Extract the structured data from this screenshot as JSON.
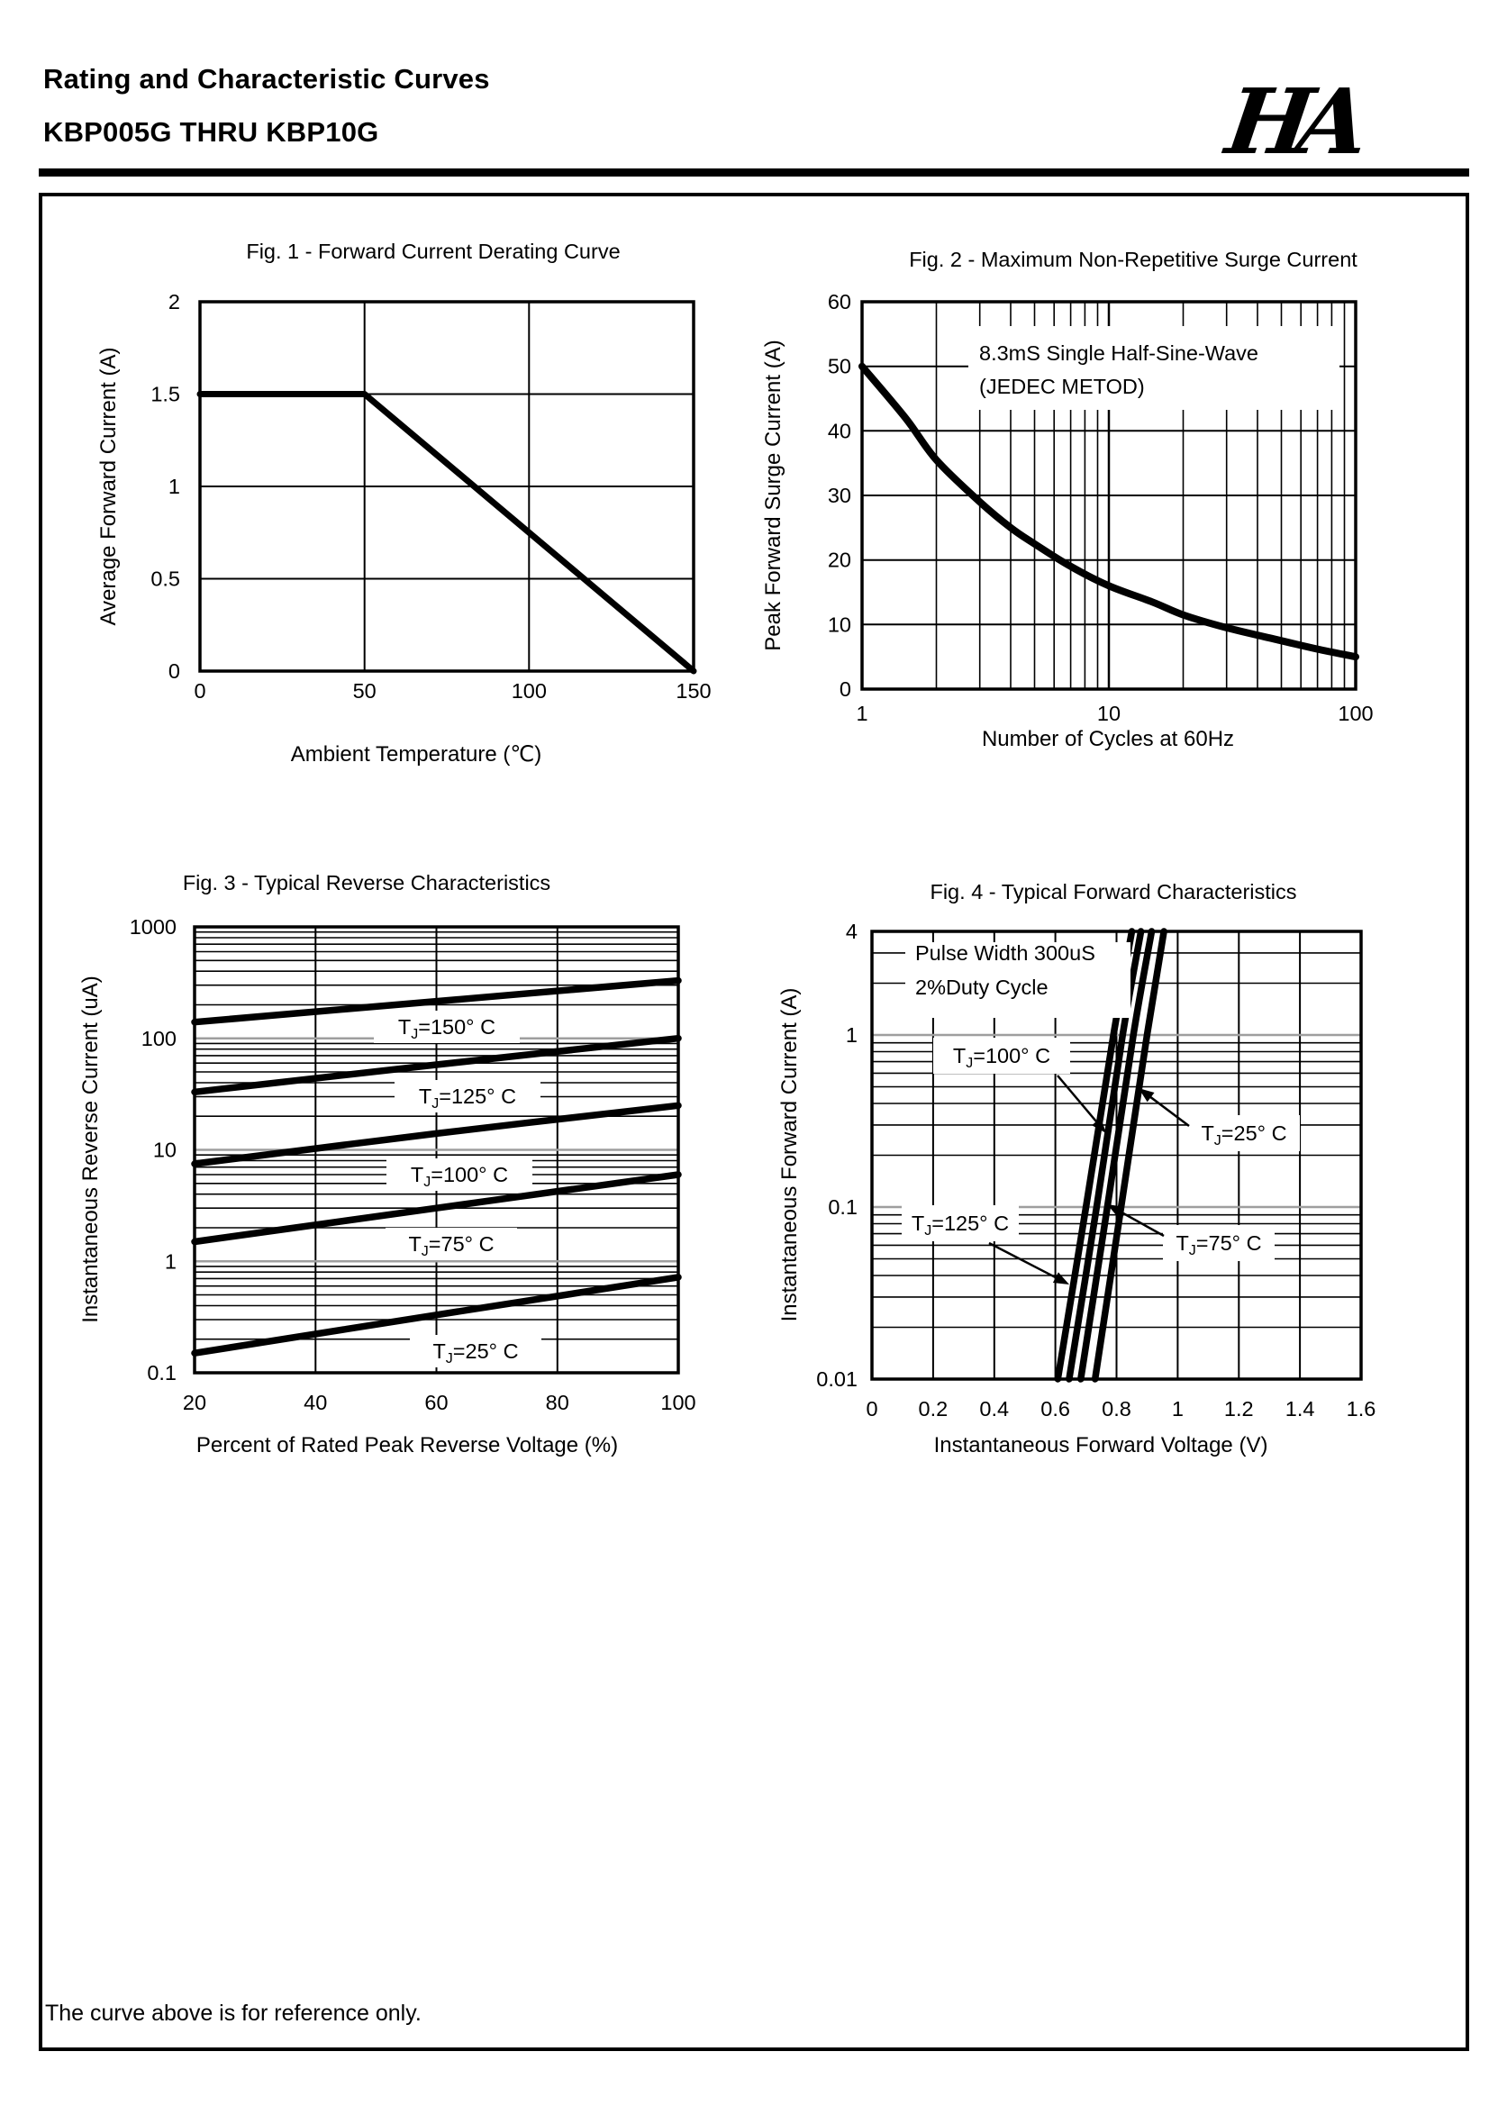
{
  "page": {
    "title_line1": "Rating and Characteristic Curves",
    "title_line2": "KBP005G THRU KBP10G",
    "logo_text": "HA",
    "footer_note": "The curve above is for reference only."
  },
  "chart_data": [
    {
      "id": "fig1",
      "type": "line",
      "title": "Fig. 1 - Forward Current Derating Curve",
      "xlabel": "Ambient Temperature (℃)",
      "ylabel": "Average Forward Current (A)",
      "xscale": "linear",
      "yscale": "linear",
      "xlim": [
        0,
        150
      ],
      "ylim": [
        0,
        2
      ],
      "xticks": [
        {
          "v": 0,
          "label": "0"
        },
        {
          "v": 50,
          "label": "50"
        },
        {
          "v": 100,
          "label": "100"
        },
        {
          "v": 150,
          "label": "150"
        }
      ],
      "yticks": [
        {
          "v": 0,
          "label": "0"
        },
        {
          "v": 0.5,
          "label": "0.5"
        },
        {
          "v": 1,
          "label": "1"
        },
        {
          "v": 1.5,
          "label": "1.5"
        },
        {
          "v": 2,
          "label": "2"
        }
      ],
      "xgrid": [
        50,
        100
      ],
      "ygrid": [
        0.5,
        1,
        1.5
      ],
      "grid": "on",
      "legend": "none",
      "series": [
        {
          "name": "average-forward-current",
          "smooth": false,
          "points": [
            [
              0,
              1.5
            ],
            [
              50,
              1.5
            ],
            [
              150,
              0
            ]
          ]
        }
      ]
    },
    {
      "id": "fig2",
      "type": "line",
      "title": "Fig. 2 - Maximum Non-Repetitive Surge Current",
      "xlabel": "Number of Cycles at 60Hz",
      "ylabel": "Peak Forward Surge Current (A)",
      "xscale": "log",
      "yscale": "linear",
      "xlim": [
        1,
        100
      ],
      "ylim": [
        0,
        60
      ],
      "xticks": [
        {
          "v": 1,
          "label": "1"
        },
        {
          "v": 10,
          "label": "10"
        },
        {
          "v": 100,
          "label": "100"
        }
      ],
      "yticks": [
        {
          "v": 0,
          "label": "0"
        },
        {
          "v": 10,
          "label": "10"
        },
        {
          "v": 20,
          "label": "20"
        },
        {
          "v": 30,
          "label": "30"
        },
        {
          "v": 40,
          "label": "40"
        },
        {
          "v": 50,
          "label": "50"
        },
        {
          "v": 60,
          "label": "60"
        }
      ],
      "xgrid": [],
      "ygrid": [
        10,
        20,
        30,
        40,
        50
      ],
      "grid": "on",
      "legend": "none",
      "notes": [
        {
          "lines": [
            "8.3mS Single Half-Sine-Wave",
            "(JEDEC METOD)"
          ]
        }
      ],
      "series": [
        {
          "name": "peak-forward-surge-current",
          "points": [
            [
              1,
              50
            ],
            [
              1.5,
              42
            ],
            [
              2,
              35.5
            ],
            [
              3,
              29
            ],
            [
              4,
              25
            ],
            [
              5,
              22.5
            ],
            [
              7,
              19
            ],
            [
              10,
              16
            ],
            [
              15,
              13.5
            ],
            [
              20,
              11.5
            ],
            [
              30,
              9.5
            ],
            [
              50,
              7.5
            ],
            [
              70,
              6.2
            ],
            [
              100,
              5
            ]
          ]
        }
      ]
    },
    {
      "id": "fig3",
      "type": "line",
      "title": "Fig. 3 - Typical Reverse Characteristics",
      "xlabel": "Percent of Rated Peak Reverse Voltage (%)",
      "ylabel": "Instantaneous Reverse Current (uA)",
      "xscale": "linear",
      "yscale": "log",
      "xlim": [
        20,
        100
      ],
      "ylim": [
        0.1,
        1000
      ],
      "xticks": [
        {
          "v": 20,
          "label": "20"
        },
        {
          "v": 40,
          "label": "40"
        },
        {
          "v": 60,
          "label": "60"
        },
        {
          "v": 80,
          "label": "80"
        },
        {
          "v": 100,
          "label": "100"
        }
      ],
      "yticks": [
        {
          "v": 1000,
          "label": "1000"
        },
        {
          "v": 100,
          "label": "100"
        },
        {
          "v": 10,
          "label": "10"
        },
        {
          "v": 1,
          "label": "1"
        },
        {
          "v": 0.1,
          "label": "0.1"
        }
      ],
      "xgrid": [
        40,
        60,
        80
      ],
      "ygrid": [],
      "grid": "on",
      "legend": "inline-labels",
      "series": [
        {
          "name": "TJ=150° C",
          "points": [
            [
              20,
              140
            ],
            [
              60,
              215
            ],
            [
              100,
              330
            ]
          ]
        },
        {
          "name": "TJ=125° C",
          "points": [
            [
              20,
              33
            ],
            [
              60,
              58
            ],
            [
              100,
              100
            ]
          ]
        },
        {
          "name": "TJ=100° C",
          "points": [
            [
              20,
              7.5
            ],
            [
              60,
              14
            ],
            [
              100,
              25
            ]
          ]
        },
        {
          "name": "TJ=75° C",
          "points": [
            [
              20,
              1.5
            ],
            [
              60,
              3
            ],
            [
              100,
              6
            ]
          ]
        },
        {
          "name": "TJ=25° C",
          "points": [
            [
              20,
              0.15
            ],
            [
              60,
              0.33
            ],
            [
              100,
              0.72
            ]
          ]
        }
      ]
    },
    {
      "id": "fig4",
      "type": "line",
      "title": "Fig. 4 - Typical Forward Characteristics",
      "xlabel": "Instantaneous Forward Voltage (V)",
      "ylabel": "Instantaneous Forward Current (A)",
      "xscale": "linear",
      "yscale": "log",
      "xlim": [
        0,
        1.6
      ],
      "ylim": [
        0.01,
        4
      ],
      "xticks": [
        {
          "v": 0,
          "label": "0"
        },
        {
          "v": 0.2,
          "label": "0.2"
        },
        {
          "v": 0.4,
          "label": "0.4"
        },
        {
          "v": 0.6,
          "label": "0.6"
        },
        {
          "v": 0.8,
          "label": "0.8"
        },
        {
          "v": 1,
          "label": "1"
        },
        {
          "v": 1.2,
          "label": "1.2"
        },
        {
          "v": 1.4,
          "label": "1.4"
        },
        {
          "v": 1.6,
          "label": "1.6"
        }
      ],
      "yticks": [
        {
          "v": 4,
          "label": "4"
        },
        {
          "v": 1,
          "label": "1"
        },
        {
          "v": 0.1,
          "label": "0.1"
        },
        {
          "v": 0.01,
          "label": "0.01"
        }
      ],
      "xgrid": [
        0.2,
        0.4,
        0.6,
        0.8,
        1,
        1.2,
        1.4
      ],
      "ygrid": [],
      "grid": "on",
      "legend": "inline-labels",
      "notes": [
        {
          "lines": [
            "Pulse Width 300uS",
            "2%Duty Cycle"
          ]
        }
      ],
      "series": [
        {
          "name": "TJ=125° C",
          "points": [
            [
              0.608,
              0.01
            ],
            [
              0.7,
              0.1
            ],
            [
              0.79,
              1
            ],
            [
              0.85,
              4
            ]
          ]
        },
        {
          "name": "TJ=100° C",
          "points": [
            [
              0.645,
              0.01
            ],
            [
              0.735,
              0.1
            ],
            [
              0.82,
              1
            ],
            [
              0.88,
              4
            ]
          ]
        },
        {
          "name": "TJ=75° C",
          "points": [
            [
              0.683,
              0.01
            ],
            [
              0.77,
              0.1
            ],
            [
              0.855,
              1
            ],
            [
              0.915,
              4
            ]
          ]
        },
        {
          "name": "TJ=25° C",
          "points": [
            [
              0.73,
              0.01
            ],
            [
              0.815,
              0.1
            ],
            [
              0.9,
              1
            ],
            [
              0.955,
              4
            ]
          ]
        }
      ]
    }
  ]
}
